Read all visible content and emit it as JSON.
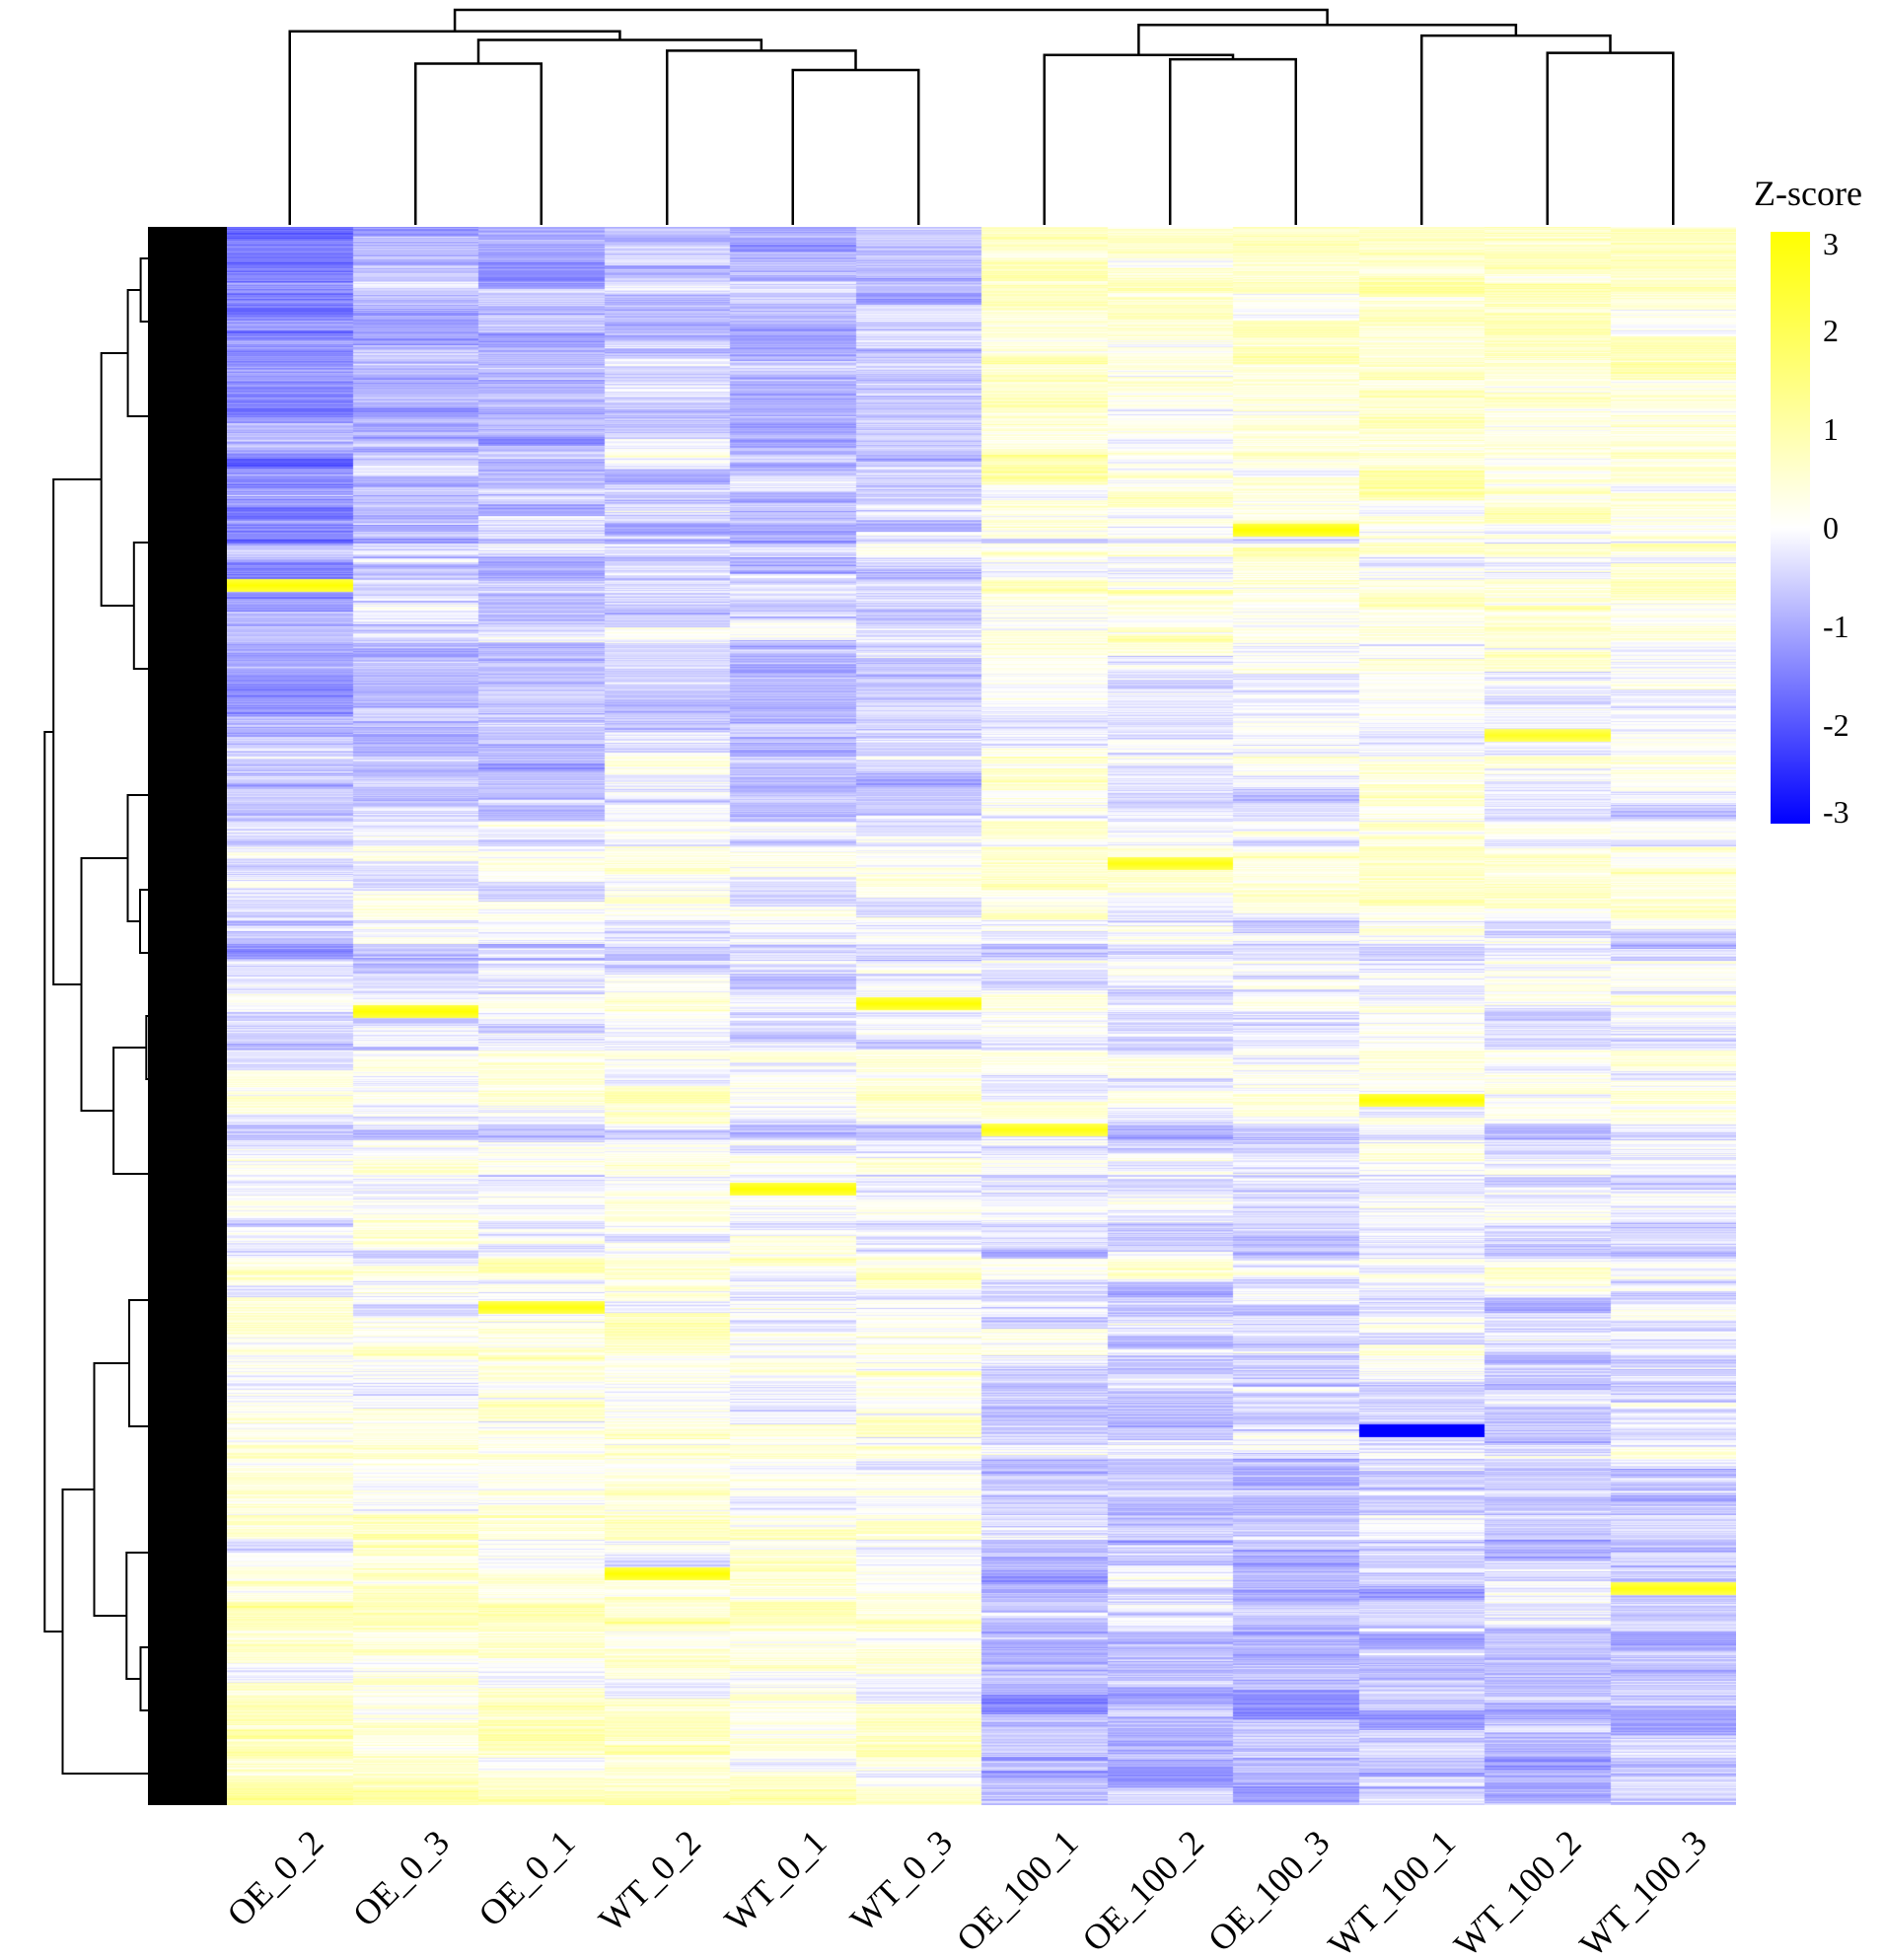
{
  "chart_data": {
    "type": "heatmap",
    "title": "",
    "columns": [
      "OE_0_2",
      "OE_0_3",
      "OE_0_1",
      "WT_0_2",
      "WT_0_1",
      "WT_0_3",
      "OE_100_1",
      "OE_100_2",
      "OE_100_3",
      "WT_100_1",
      "WT_100_2",
      "WT_100_3"
    ],
    "row_count": 1600,
    "clustering": {
      "columns": true,
      "rows": true
    },
    "column_dendrogram": [
      {
        "left": "OE_0_3",
        "right": "OE_0_1",
        "height": 0.75
      },
      {
        "left": "WT_0_1",
        "right": "WT_0_3",
        "height": 0.72
      },
      {
        "left": "WT_0_2",
        "right": [
          "WT_0_1",
          "WT_0_3"
        ],
        "height": 0.81
      },
      {
        "left": [
          "OE_0_3",
          "OE_0_1"
        ],
        "right": [
          "WT_0_2",
          "WT_0_1",
          "WT_0_3"
        ],
        "height": 0.86
      },
      {
        "left": "OE_0_2",
        "right": [
          "OE_0_3",
          "OE_0_1",
          "WT_0_2",
          "WT_0_1",
          "WT_0_3"
        ],
        "height": 0.9
      },
      {
        "left": "OE_100_2",
        "right": "OE_100_3",
        "height": 0.77
      },
      {
        "left": "OE_100_1",
        "right": [
          "OE_100_2",
          "OE_100_3"
        ],
        "height": 0.79
      },
      {
        "left": "WT_100_2",
        "right": "WT_100_3",
        "height": 0.8
      },
      {
        "left": "WT_100_1",
        "right": [
          "WT_100_2",
          "WT_100_3"
        ],
        "height": 0.88
      },
      {
        "left": [
          "OE_100_1",
          "OE_100_2",
          "OE_100_3"
        ],
        "right": [
          "WT_100_1",
          "WT_100_2",
          "WT_100_3"
        ],
        "height": 0.93
      },
      {
        "left": [
          "OE_0_2",
          "OE_0_3",
          "OE_0_1",
          "WT_0_2",
          "WT_0_1",
          "WT_0_3"
        ],
        "right": [
          "OE_100_1",
          "OE_100_2",
          "OE_100_3",
          "WT_100_1",
          "WT_100_2",
          "WT_100_3"
        ],
        "height": 1.0
      }
    ],
    "column_trends": [
      {
        "name": "OE_0_2",
        "top": -1.5,
        "bottom": 0.8
      },
      {
        "name": "OE_0_3",
        "top": -0.9,
        "bottom": 0.6
      },
      {
        "name": "OE_0_1",
        "top": -1.0,
        "bottom": 0.7
      },
      {
        "name": "WT_0_2",
        "top": -0.6,
        "bottom": 0.6
      },
      {
        "name": "WT_0_1",
        "top": -0.9,
        "bottom": 0.5
      },
      {
        "name": "WT_0_3",
        "top": -0.7,
        "bottom": 0.5
      },
      {
        "name": "OE_100_1",
        "top": 0.8,
        "bottom": -0.9
      },
      {
        "name": "OE_100_2",
        "top": 0.5,
        "bottom": -0.8
      },
      {
        "name": "OE_100_3",
        "top": 0.6,
        "bottom": -0.9
      },
      {
        "name": "WT_100_1",
        "top": 0.8,
        "bottom": -0.7
      },
      {
        "name": "WT_100_2",
        "top": 0.7,
        "bottom": -0.8
      },
      {
        "name": "WT_100_3",
        "top": 0.6,
        "bottom": -0.7
      }
    ],
    "highlight_cells": [
      {
        "column": "OE_0_2",
        "row": 363,
        "value": 3.0
      },
      {
        "column": "OE_0_3",
        "row": 795,
        "value": 3.0
      },
      {
        "column": "OE_0_1",
        "row": 1095,
        "value": 2.8
      },
      {
        "column": "WT_0_2",
        "row": 1365,
        "value": 3.0
      },
      {
        "column": "WT_0_1",
        "row": 975,
        "value": 3.0
      },
      {
        "column": "WT_0_3",
        "row": 787,
        "value": 3.0
      },
      {
        "column": "OE_100_1",
        "row": 915,
        "value": 2.8
      },
      {
        "column": "OE_100_2",
        "row": 645,
        "value": 2.8
      },
      {
        "column": "OE_100_3",
        "row": 307,
        "value": 3.0
      },
      {
        "column": "WT_100_1",
        "row": 885,
        "value": 3.0
      },
      {
        "column": "WT_100_2",
        "row": 515,
        "value": 2.6
      },
      {
        "column": "WT_100_3",
        "row": 1380,
        "value": 2.8
      },
      {
        "column": "WT_100_1",
        "row": 1220,
        "value": -3.0
      }
    ],
    "colorbar": {
      "title": "Z-score",
      "ticks": [
        3,
        2,
        1,
        0,
        -1,
        -2,
        -3
      ],
      "range": [
        -3,
        3
      ],
      "colors": {
        "low": "#0000ff",
        "mid": "#ffffff",
        "high": "#ffff00"
      }
    }
  }
}
